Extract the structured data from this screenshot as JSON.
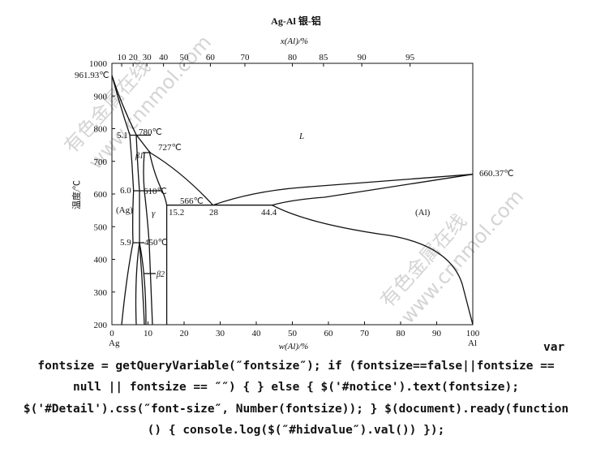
{
  "figure": {
    "title": "Ag-Al  银-铝",
    "top_axis_label": "x(Al)/%",
    "bottom_axis_label": "w(Al)/%",
    "y_axis_label": "温度/℃",
    "yticks": [
      1000,
      900,
      800,
      700,
      600,
      500,
      400,
      300,
      200
    ],
    "xticks": [
      0,
      10,
      20,
      30,
      40,
      50,
      60,
      70,
      80,
      90,
      100
    ],
    "top_ticks": [
      10,
      20,
      30,
      40,
      50,
      60,
      70,
      80,
      85,
      90,
      95
    ],
    "end_labels": [
      "Ag",
      "Al"
    ],
    "annotations": [
      "961.93℃",
      "660.37℃",
      "780℃",
      "727℃",
      "610℃",
      "566℃",
      "450℃",
      "5.1",
      "6.0",
      "5.9",
      "15.2",
      "28",
      "44.4",
      "L",
      "(Ag)",
      "γ",
      "(Al)",
      "β1",
      "β2"
    ],
    "watermarks": [
      "有色金属在线",
      "www.cnnmol.com"
    ]
  },
  "code": {
    "lead": "var",
    "lines": [
      "fontsize = getQueryVariable(″fontsize″); if (fontsize==false||fontsize ==",
      "null || fontsize == ″″) { } else { $('#notice').text(fontsize);",
      "$('#Detail').css(″font-size″, Number(fontsize)); } $(document).ready(function",
      "() { console.log($(″#hidvalue″).val()) });"
    ]
  }
}
